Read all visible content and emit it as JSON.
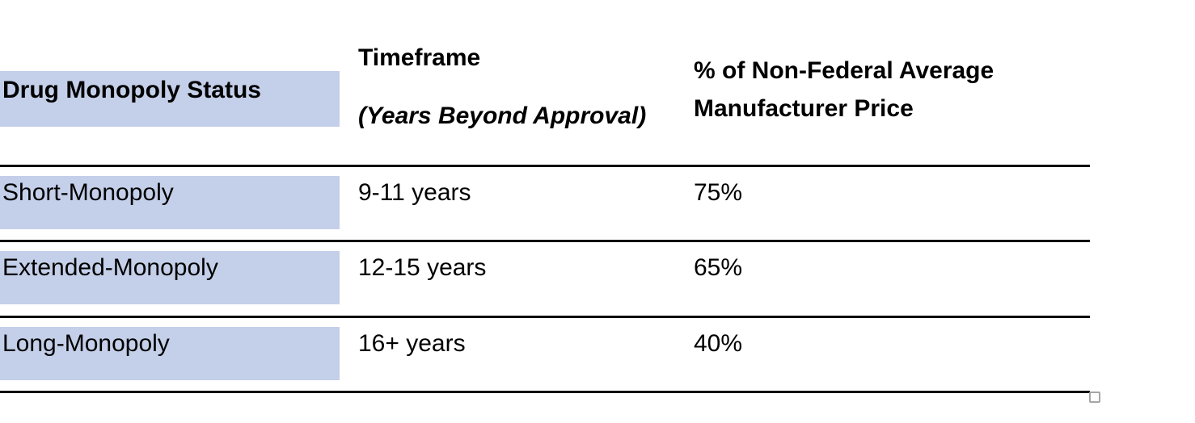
{
  "document": {
    "background": "#FFFFFF"
  },
  "table": {
    "header": {
      "status": "Drug Monopoly Status",
      "timeframe_title": "Timeframe",
      "timeframe_subtitle": "(Years Beyond Approval)",
      "price_line1": "% of Non-Federal Average",
      "price_line2": "Manufacturer Price"
    },
    "rows": [
      {
        "status": "Short-Monopoly",
        "timeframe": "9-11 years",
        "price": "75%"
      },
      {
        "status": "Extended-Monopoly",
        "timeframe": "12-15 years",
        "price": "65%"
      },
      {
        "status": "Long-Monopoly",
        "timeframe": "16+ years",
        "price": "40%"
      }
    ],
    "colors": {
      "row_highlight": "#C4CFE9",
      "rule": "#000000",
      "resize_handle_border": "#A6A6A6"
    }
  },
  "chart_data": {
    "type": "table",
    "columns": [
      "Drug Monopoly Status",
      "Timeframe (Years Beyond Approval)",
      "% of Non-Federal Average Manufacturer Price"
    ],
    "rows": [
      [
        "Short-Monopoly",
        "9-11 years",
        "75%"
      ],
      [
        "Extended-Monopoly",
        "12-15 years",
        "65%"
      ],
      [
        "Long-Monopoly",
        "16+ years",
        "40%"
      ]
    ]
  }
}
